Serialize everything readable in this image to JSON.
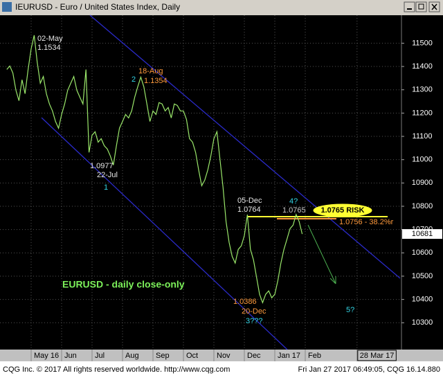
{
  "window": {
    "status_left": "CQG Inc. © 2017 All rights reserved worldwide. http://www.cqg.com",
    "status_right": "Fri Jan 27 2017 06:49:05, CQG 16.14.880"
  },
  "chart_data": {
    "type": "line",
    "title": "IEURUSD - Euro / United States Index, Daily",
    "categories": [
      null,
      null,
      null,
      null,
      null,
      null,
      null,
      null,
      null,
      null,
      "May 16",
      null,
      null,
      null,
      null,
      null,
      null,
      null,
      null,
      null,
      "Jun",
      null,
      null,
      null,
      null,
      null,
      null,
      null,
      null,
      null,
      "Jul",
      null,
      null,
      null,
      null,
      null,
      null,
      null,
      null,
      null,
      "Aug",
      null,
      null,
      null,
      null,
      null,
      null,
      null,
      null,
      null,
      "Sep",
      null,
      null,
      null,
      null,
      null,
      null,
      null,
      null,
      null,
      "Oct",
      null,
      null,
      null,
      null,
      null,
      null,
      null,
      null,
      null,
      "Nov",
      null,
      null,
      null,
      null,
      null,
      null,
      null,
      null,
      null,
      "Dec",
      null,
      null,
      null,
      null,
      null,
      null,
      null,
      null,
      null,
      "Jan 17",
      null,
      null,
      null,
      null,
      null,
      null,
      null,
      null,
      null,
      "Feb",
      null,
      null,
      null,
      null,
      null,
      null,
      null,
      null,
      null,
      null,
      null,
      null,
      null,
      null,
      null,
      null,
      "28 Mar 17",
      null,
      null,
      null,
      null,
      null,
      null,
      null,
      null,
      null,
      null,
      null,
      null,
      null,
      null
    ],
    "series": [
      {
        "name": "EURUSD",
        "color": "#9be86b",
        "values": [
          null,
          null,
          11387,
          11402,
          11372,
          11298,
          11253,
          11343,
          11283,
          11387,
          11476,
          11534,
          11417,
          11328,
          11357,
          11283,
          11239,
          11209,
          11164,
          11135,
          11194,
          11239,
          11298,
          11328,
          11357,
          11298,
          11268,
          11239,
          11387,
          11031,
          11105,
          11120,
          11075,
          11090,
          11060,
          11046,
          11016,
          10977,
          11060,
          11135,
          11164,
          11194,
          11179,
          11209,
          11268,
          11313,
          11354,
          11313,
          11239,
          11164,
          11209,
          11194,
          11245,
          11239,
          11209,
          11224,
          11179,
          11239,
          11233,
          11209,
          11209,
          11173,
          11090,
          11075,
          11031,
          10956,
          10888,
          10912,
          10956,
          11016,
          11090,
          11120,
          11001,
          10882,
          10734,
          10645,
          10585,
          10556,
          10615,
          10630,
          10674,
          10764,
          10615,
          10570,
          10496,
          10422,
          10386,
          10422,
          10437,
          10407,
          10422,
          10481,
          10556,
          10615,
          10659,
          10704,
          10719,
          10765,
          10734,
          10681,
          null,
          null,
          null,
          null,
          null,
          null,
          null,
          null,
          null,
          null,
          null,
          null,
          null,
          null,
          null,
          null,
          null,
          null,
          null,
          null,
          null,
          null,
          null,
          null,
          null,
          null,
          null,
          null,
          null,
          null,
          null,
          null
        ]
      }
    ],
    "last_value": 10681,
    "ylim": [
      10185,
      11620
    ],
    "yticks": [
      10300,
      10400,
      10500,
      10600,
      10700,
      10800,
      10900,
      11000,
      11100,
      11200,
      11300,
      11400,
      11500
    ],
    "grid": true,
    "annotations": [
      {
        "text": "02-May",
        "color": "#e8e8e8"
      },
      {
        "text": "1.1534",
        "color": "#e8e8e8"
      },
      {
        "text": "18-Aug",
        "color": "#ff9a3c"
      },
      {
        "text": "1.1354",
        "color": "#ff9a3c"
      },
      {
        "text": "2",
        "color": "#33d6e6"
      },
      {
        "text": "1.0977",
        "color": "#e8e8e8"
      },
      {
        "text": "22-Jul",
        "color": "#e8e8e8"
      },
      {
        "text": "1",
        "color": "#33d6e6"
      },
      {
        "text": "05-Dec",
        "color": "#e8e8e8"
      },
      {
        "text": "1.0764",
        "color": "#e8e8e8"
      },
      {
        "text": "4?",
        "color": "#33d6e6"
      },
      {
        "text": "1.0765",
        "color": "#c8c8c8"
      },
      {
        "text": "1.0765 RISK",
        "color": "#ffff33"
      },
      {
        "text": "1.0756 - 38.2%r",
        "color": "#ff9a3c"
      },
      {
        "text": "1.0386",
        "color": "#ff9a3c"
      },
      {
        "text": "20-Dec",
        "color": "#ff9a3c"
      },
      {
        "text": "3???",
        "color": "#33d6e6"
      },
      {
        "text": "5?",
        "color": "#33d6e6"
      },
      {
        "text": "EURUSD - daily close-only",
        "color": "#7cf05a"
      }
    ]
  }
}
